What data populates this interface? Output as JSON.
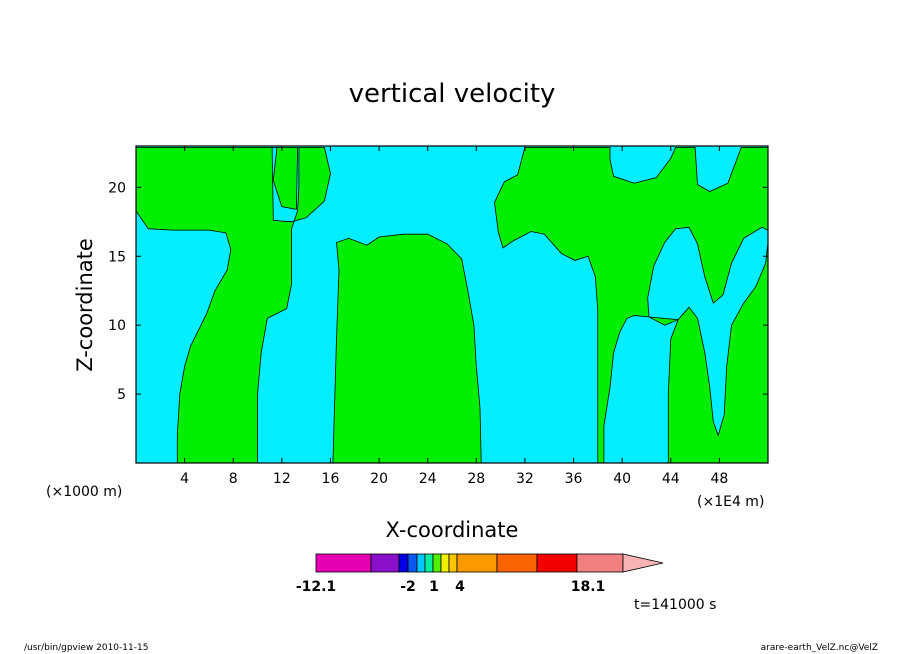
{
  "chart_data": {
    "type": "heatmap",
    "title": "vertical velocity",
    "xlabel": "X-coordinate",
    "ylabel": "Z-coordinate",
    "x_unit_left": "(×1000 m)",
    "x_unit_right": "(×1E4 m)",
    "xlim": [
      0,
      52
    ],
    "ylim": [
      0,
      23
    ],
    "x_ticks": [
      4,
      8,
      12,
      16,
      20,
      24,
      28,
      32,
      36,
      40,
      44,
      48
    ],
    "y_ticks": [
      5,
      10,
      15,
      20
    ],
    "background_color": "#00eeff",
    "contour_fill_color": "#00ee00",
    "regions": [
      {
        "name": "green-region-1",
        "points": [
          [
            0,
            22.9
          ],
          [
            11.6,
            22.9
          ],
          [
            11.3,
            20.5
          ],
          [
            12,
            18.6
          ],
          [
            13.2,
            18.4
          ],
          [
            13.3,
            22.9
          ],
          [
            11.6,
            22.9
          ],
          [
            0,
            22.9
          ],
          [
            0,
            18.3
          ],
          [
            1,
            17
          ],
          [
            3,
            16.9
          ],
          [
            6,
            16.9
          ],
          [
            7.4,
            16.7
          ],
          [
            7.8,
            15.5
          ],
          [
            7.5,
            14
          ],
          [
            6.5,
            12.5
          ],
          [
            5.8,
            10.8
          ],
          [
            4.5,
            8.5
          ],
          [
            4,
            7
          ],
          [
            3.6,
            5
          ],
          [
            3.4,
            2
          ],
          [
            3.4,
            0
          ],
          [
            10,
            0
          ],
          [
            10,
            5
          ],
          [
            10.3,
            8
          ],
          [
            10.8,
            10.5
          ],
          [
            12.4,
            11.2
          ],
          [
            12.8,
            13
          ],
          [
            12.8,
            17
          ],
          [
            13.3,
            18.3
          ],
          [
            13.4,
            20
          ],
          [
            13.4,
            22.9
          ],
          [
            15.5,
            22.9
          ],
          [
            16,
            21
          ],
          [
            15.5,
            19
          ],
          [
            14,
            17.8
          ],
          [
            12.8,
            17.5
          ],
          [
            11.3,
            17.6
          ],
          [
            11.2,
            22.9
          ]
        ]
      },
      {
        "name": "green-region-2",
        "points": [
          [
            16.2,
            0
          ],
          [
            16.5,
            9
          ],
          [
            16.7,
            14
          ],
          [
            16.5,
            16
          ],
          [
            17.5,
            16.3
          ],
          [
            19,
            15.8
          ],
          [
            20,
            16.4
          ],
          [
            22,
            16.6
          ],
          [
            24,
            16.6
          ],
          [
            25.6,
            15.9
          ],
          [
            26.8,
            14.8
          ],
          [
            27.3,
            12.5
          ],
          [
            27.8,
            10
          ],
          [
            28,
            7
          ],
          [
            28.3,
            4
          ],
          [
            28.4,
            0
          ]
        ]
      },
      {
        "name": "green-region-3",
        "points": [
          [
            32,
            22.9
          ],
          [
            39,
            22.9
          ],
          [
            39,
            22
          ],
          [
            39.3,
            20.8
          ],
          [
            41,
            20.3
          ],
          [
            42.8,
            20.7
          ],
          [
            44,
            22.1
          ],
          [
            44.4,
            22.9
          ],
          [
            46,
            22.9
          ],
          [
            46.2,
            20.2
          ],
          [
            47.2,
            19.7
          ],
          [
            48.7,
            20.3
          ],
          [
            49.8,
            22.9
          ],
          [
            52,
            22.9
          ],
          [
            52,
            16.9
          ],
          [
            51.5,
            17.1
          ],
          [
            50,
            16.3
          ],
          [
            49,
            14.5
          ],
          [
            48.3,
            12.2
          ],
          [
            47.5,
            11.6
          ],
          [
            46.8,
            13.5
          ],
          [
            46.2,
            15.9
          ],
          [
            45.5,
            17.1
          ],
          [
            44.4,
            17
          ],
          [
            43.5,
            16
          ],
          [
            42.6,
            14.3
          ],
          [
            42.1,
            12
          ],
          [
            42.2,
            10.6
          ],
          [
            43.5,
            10
          ],
          [
            44.6,
            10.4
          ],
          [
            45.5,
            11.3
          ],
          [
            46.2,
            10.5
          ],
          [
            46.8,
            8
          ],
          [
            47.2,
            5.5
          ],
          [
            47.5,
            3
          ],
          [
            47.9,
            2
          ],
          [
            48.4,
            3.5
          ],
          [
            48.6,
            7
          ],
          [
            49,
            10
          ],
          [
            50,
            11.6
          ],
          [
            51,
            12.8
          ],
          [
            51.8,
            14.5
          ],
          [
            52,
            16
          ],
          [
            52,
            0
          ],
          [
            43.8,
            0
          ],
          [
            43.8,
            5
          ],
          [
            44,
            9
          ],
          [
            44.6,
            10.4
          ],
          [
            42.2,
            10.6
          ],
          [
            41,
            10.7
          ],
          [
            40.4,
            10.5
          ],
          [
            39.8,
            9.5
          ],
          [
            39.3,
            8
          ],
          [
            39,
            5.5
          ],
          [
            38.5,
            2.7
          ],
          [
            38.5,
            0
          ],
          [
            38,
            0
          ],
          [
            38,
            6
          ],
          [
            38,
            11
          ],
          [
            37.8,
            13.5
          ],
          [
            37.2,
            15
          ],
          [
            36.1,
            14.7
          ],
          [
            35,
            15.2
          ],
          [
            33.6,
            16.6
          ],
          [
            32.5,
            16.8
          ],
          [
            31,
            16.1
          ],
          [
            30.2,
            15.6
          ],
          [
            29.8,
            16.8
          ],
          [
            29.5,
            18.9
          ],
          [
            30.3,
            20.4
          ],
          [
            31.4,
            20.9
          ]
        ]
      }
    ],
    "colorbar": {
      "levels": [
        "-12.1",
        "-2",
        "1",
        "4",
        "18.1"
      ],
      "colors": [
        "#e600b4",
        "#8a10cc",
        "#0000e6",
        "#0a5af0",
        "#00c8ff",
        "#00f0a0",
        "#50f000",
        "#f0f000",
        "#fac800",
        "#fa9a00",
        "#fa6400",
        "#f50000",
        "#f28080"
      ],
      "extend": "max",
      "extend_color": "#f8b4b4"
    },
    "time_label": "t=141000 s"
  },
  "footer": {
    "left": "/usr/bin/gpview 2010-11-15",
    "right": "arare-earth_VelZ.nc@VelZ"
  }
}
